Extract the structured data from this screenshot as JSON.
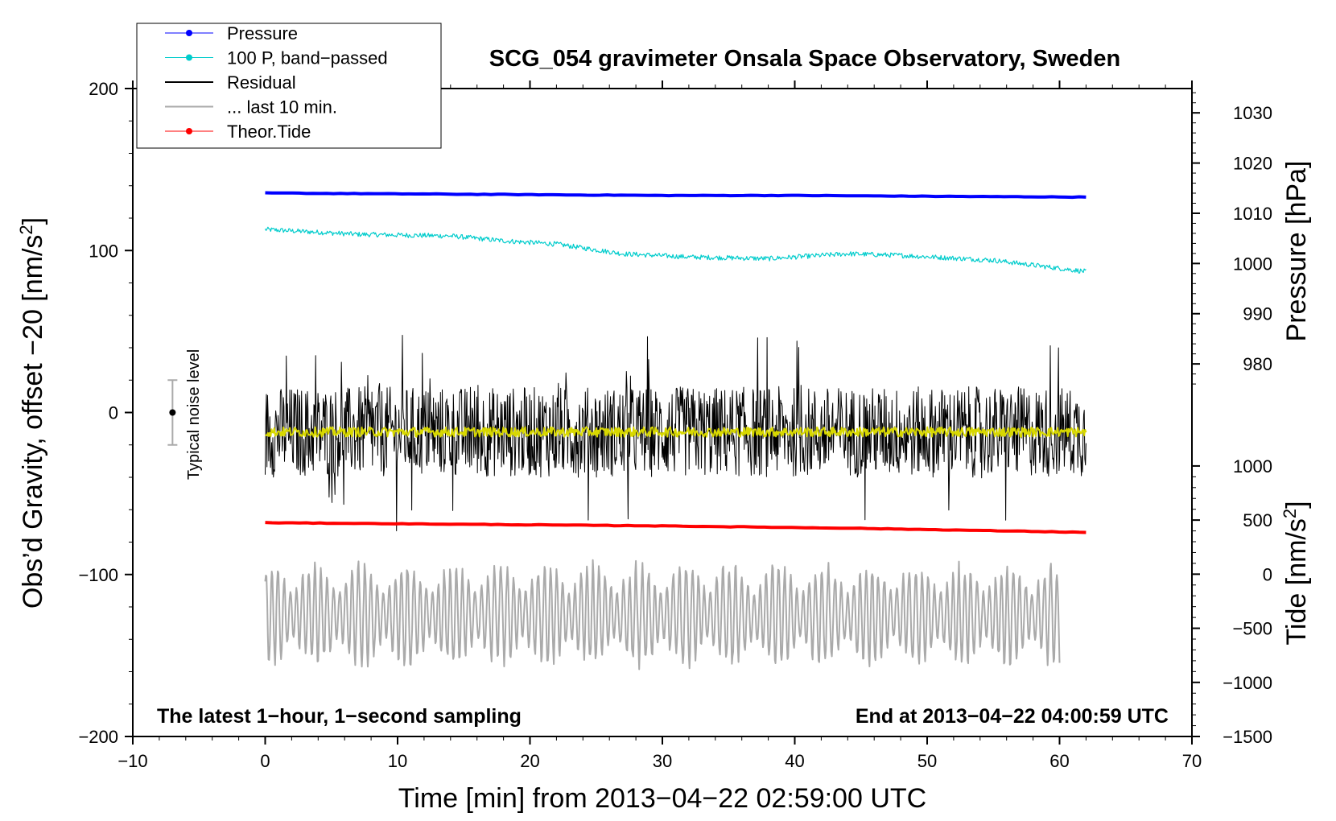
{
  "chart_data": {
    "type": "line",
    "title": "SCG_054 gravimeter Onsala Space Observatory, Sweden",
    "xlabel": "Time [min] from 2013−04−22 02:59:00 UTC",
    "ylabel_left": "Obs’d Gravity, offset −20 [nm/s",
    "ylabel_left_sup": "2",
    "ylabel_left_close": "]",
    "ylabel_pressure": "Pressure [hPa]",
    "ylabel_tide": "Tide [nm/s",
    "ylabel_tide_sup": "2",
    "ylabel_tide_close": "]",
    "xlim": [
      -10,
      70
    ],
    "ylim_left": [
      -200,
      200
    ],
    "x_ticks": [
      {
        "v": -10,
        "label": "−10"
      },
      {
        "v": 0,
        "label": "0"
      },
      {
        "v": 10,
        "label": "10"
      },
      {
        "v": 20,
        "label": "20"
      },
      {
        "v": 30,
        "label": "30"
      },
      {
        "v": 40,
        "label": "40"
      },
      {
        "v": 50,
        "label": "50"
      },
      {
        "v": 60,
        "label": "60"
      },
      {
        "v": 70,
        "label": "70"
      }
    ],
    "y_ticks_left": [
      {
        "v": 200,
        "label": "200"
      },
      {
        "v": 100,
        "label": "100"
      },
      {
        "v": 0,
        "label": "0"
      },
      {
        "v": -100,
        "label": "−100"
      },
      {
        "v": -200,
        "label": "−200"
      }
    ],
    "pressure_axis": {
      "unit": "hPa",
      "left_at_980": 30,
      "left_at_1030": 185
    },
    "pressure_ticks": [
      {
        "v": 980,
        "label": "980"
      },
      {
        "v": 990,
        "label": "990"
      },
      {
        "v": 1000,
        "label": "1000"
      },
      {
        "v": 1010,
        "label": "1010"
      },
      {
        "v": 1020,
        "label": "1020"
      },
      {
        "v": 1030,
        "label": "1030"
      }
    ],
    "tide_axis": {
      "unit": "nm/s2",
      "left_at_minus1500": -200,
      "left_at_1000": -33
    },
    "tide_ticks": [
      {
        "v": 1000,
        "label": "1000"
      },
      {
        "v": 500,
        "label": "500"
      },
      {
        "v": 0,
        "label": "0"
      },
      {
        "v": -500,
        "label": "−500"
      },
      {
        "v": -1000,
        "label": "−1000"
      },
      {
        "v": -1500,
        "label": "−1500"
      }
    ],
    "legend": [
      {
        "label": "Pressure",
        "color": "#0000ff",
        "marker": true
      },
      {
        "label": "100 P, band−passed",
        "color": "#00cccc",
        "marker": true
      },
      {
        "label": "Residual",
        "color": "#000000",
        "marker": false
      },
      {
        "label": "... last 10 min.",
        "color": "#aaaaaa",
        "marker": false
      },
      {
        "label": "Theor.Tide",
        "color": "#ff0000",
        "marker": true
      }
    ],
    "series": [
      {
        "name": "Pressure",
        "color": "#0000ff",
        "kind": "smooth",
        "points": [
          [
            0,
            135.5
          ],
          [
            10,
            135
          ],
          [
            20,
            134.5
          ],
          [
            30,
            134
          ],
          [
            40,
            134
          ],
          [
            50,
            133.5
          ],
          [
            62,
            133
          ]
        ]
      },
      {
        "name": "100 P, band-passed",
        "color": "#00cccc",
        "kind": "noisy",
        "noise": 2.5,
        "points": [
          [
            0,
            113
          ],
          [
            7,
            110
          ],
          [
            14,
            109
          ],
          [
            18,
            106
          ],
          [
            22,
            104
          ],
          [
            27,
            98
          ],
          [
            32,
            96
          ],
          [
            38,
            95
          ],
          [
            44,
            98
          ],
          [
            48,
            97
          ],
          [
            55,
            94
          ],
          [
            60,
            89
          ],
          [
            62,
            87
          ]
        ]
      },
      {
        "name": "Residual",
        "color": "#000000",
        "kind": "noisy",
        "noise": 28,
        "points": [
          [
            0,
            -12
          ],
          [
            62,
            -12
          ]
        ]
      },
      {
        "name": "Residual (smoothed)",
        "color": "#d8d800",
        "kind": "noisy",
        "noise": 5,
        "points": [
          [
            0,
            -12
          ],
          [
            62,
            -12
          ]
        ]
      },
      {
        "name": "Theor.Tide",
        "color": "#ff0000",
        "kind": "smooth",
        "points": [
          [
            0,
            -68
          ],
          [
            15,
            -69
          ],
          [
            30,
            -70
          ],
          [
            45,
            -71.5
          ],
          [
            62,
            -74
          ]
        ]
      },
      {
        "name": "... last 10 min.",
        "color": "#aaaaaa",
        "kind": "oscillating",
        "center": -125,
        "amplitude": 28,
        "points": [
          [
            0,
            -120
          ],
          [
            60,
            -148
          ]
        ]
      }
    ],
    "noise_bar": {
      "center": 0,
      "low": -20,
      "high": 20,
      "x": -7,
      "label": "Typical noise level"
    },
    "note_left": "The latest 1−hour, 1−second sampling",
    "note_right": "End at 2013−04−22 04:00:59 UTC"
  }
}
